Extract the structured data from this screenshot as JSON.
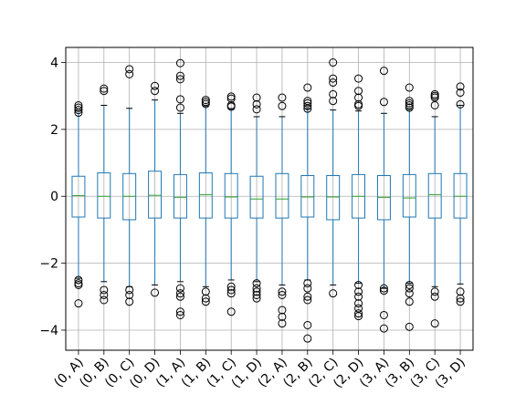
{
  "chart_data": {
    "type": "boxplot",
    "title": "",
    "xlabel": "",
    "ylabel": "",
    "ylim": [
      -4.6,
      4.45
    ],
    "yticks": [
      -4,
      -2,
      0,
      2,
      4
    ],
    "ytick_labels": [
      "−4",
      "−2",
      "0",
      "2",
      "4"
    ],
    "grid": true,
    "colors": {
      "box": "#1f77b4",
      "median": "#2ca02c",
      "outlier": "#000000",
      "grid": "#b0b0b0"
    },
    "categories": [
      "(0, A)",
      "(0, B)",
      "(0, C)",
      "(0, D)",
      "(1, A)",
      "(1, B)",
      "(1, C)",
      "(1, D)",
      "(2, A)",
      "(2, B)",
      "(2, C)",
      "(2, D)",
      "(3, A)",
      "(3, B)",
      "(3, C)",
      "(3, D)"
    ],
    "boxes": [
      {
        "q1": -0.62,
        "median": 0.02,
        "q3": 0.6,
        "whisker_low": -2.45,
        "whisker_high": 2.55,
        "outliers": [
          2.72,
          2.65,
          2.58,
          2.5,
          -2.5,
          -2.6,
          -2.65,
          -3.2
        ]
      },
      {
        "q1": -0.65,
        "median": 0.0,
        "q3": 0.7,
        "whisker_low": -2.55,
        "whisker_high": 2.72,
        "outliers": [
          3.22,
          3.15,
          -2.8,
          -2.95,
          -3.1
        ]
      },
      {
        "q1": -0.7,
        "median": 0.0,
        "q3": 0.68,
        "whisker_low": -2.7,
        "whisker_high": 2.63,
        "outliers": [
          3.8,
          3.65,
          -2.8,
          -2.95,
          -3.15
        ]
      },
      {
        "q1": -0.65,
        "median": 0.03,
        "q3": 0.75,
        "whisker_low": -2.65,
        "whisker_high": 2.88,
        "outliers": [
          3.3,
          3.15,
          -2.88
        ]
      },
      {
        "q1": -0.65,
        "median": -0.03,
        "q3": 0.65,
        "whisker_low": -2.55,
        "whisker_high": 2.48,
        "outliers": [
          3.98,
          3.6,
          3.5,
          2.9,
          2.65,
          -2.75,
          -2.9,
          -3.0,
          -3.45,
          -3.55
        ]
      },
      {
        "q1": -0.65,
        "median": 0.05,
        "q3": 0.7,
        "whisker_low": -2.7,
        "whisker_high": 2.7,
        "outliers": [
          2.88,
          2.82,
          2.76,
          -2.85,
          -3.05,
          -3.15
        ]
      },
      {
        "q1": -0.65,
        "median": -0.02,
        "q3": 0.68,
        "whisker_low": -2.5,
        "whisker_high": 2.62,
        "outliers": [
          2.98,
          2.92,
          2.72,
          2.68,
          -2.7,
          -2.8,
          -2.9,
          -3.45
        ]
      },
      {
        "q1": -0.65,
        "median": -0.08,
        "q3": 0.6,
        "whisker_low": -2.55,
        "whisker_high": 2.38,
        "outliers": [
          2.95,
          2.75,
          2.6,
          -2.6,
          -2.75,
          -2.85,
          -2.95,
          -3.05
        ]
      },
      {
        "q1": -0.65,
        "median": -0.08,
        "q3": 0.68,
        "whisker_low": -2.65,
        "whisker_high": 2.38,
        "outliers": [
          2.95,
          2.7,
          -2.85,
          -2.95,
          -3.4,
          -3.6,
          -3.8
        ]
      },
      {
        "q1": -0.62,
        "median": -0.02,
        "q3": 0.62,
        "whisker_low": -2.5,
        "whisker_high": 2.62,
        "outliers": [
          3.25,
          2.85,
          2.78,
          2.7,
          2.62,
          -2.6,
          -2.75,
          -3.0,
          -3.1,
          -3.85,
          -4.25
        ]
      },
      {
        "q1": -0.7,
        "median": -0.02,
        "q3": 0.62,
        "whisker_low": -2.65,
        "whisker_high": 2.58,
        "outliers": [
          4.0,
          3.52,
          3.4,
          3.05,
          2.85,
          -2.9
        ]
      },
      {
        "q1": -0.65,
        "median": 0.0,
        "q3": 0.65,
        "whisker_low": -2.6,
        "whisker_high": 2.55,
        "outliers": [
          3.52,
          3.15,
          2.95,
          2.75,
          2.7,
          -2.65,
          -2.85,
          -3.0,
          -3.2,
          -3.35,
          -3.5,
          -3.58
        ]
      },
      {
        "q1": -0.7,
        "median": -0.03,
        "q3": 0.62,
        "whisker_low": -2.75,
        "whisker_high": 2.48,
        "outliers": [
          3.75,
          2.82,
          -2.75,
          -2.82,
          -3.55,
          -3.95
        ]
      },
      {
        "q1": -0.62,
        "median": -0.05,
        "q3": 0.65,
        "whisker_low": -2.6,
        "whisker_high": 2.6,
        "outliers": [
          3.25,
          2.85,
          2.78,
          2.72,
          2.65,
          -2.65,
          -2.75,
          -2.9,
          -3.15,
          -3.9
        ]
      },
      {
        "q1": -0.65,
        "median": 0.05,
        "q3": 0.68,
        "whisker_low": -2.7,
        "whisker_high": 2.38,
        "outliers": [
          3.05,
          3.0,
          2.95,
          2.72,
          -2.85,
          -3.0,
          -3.8
        ]
      },
      {
        "q1": -0.65,
        "median": 0.0,
        "q3": 0.68,
        "whisker_low": -2.62,
        "whisker_high": 2.72,
        "outliers": [
          3.28,
          3.1,
          2.75,
          -2.85,
          -3.05,
          -3.15
        ]
      }
    ]
  }
}
